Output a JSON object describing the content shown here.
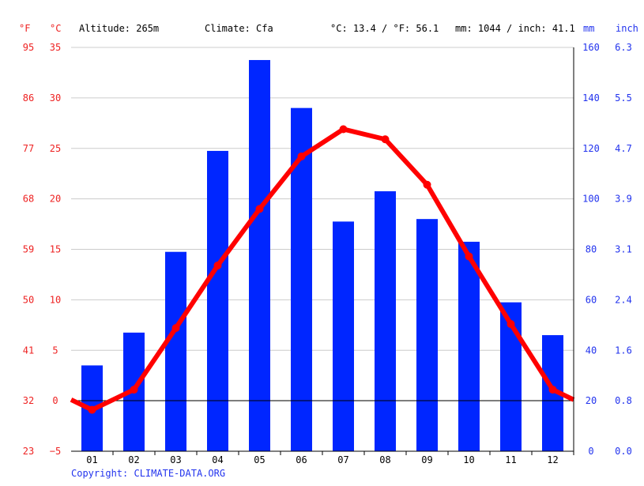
{
  "header": {
    "f_unit": "°F",
    "c_unit": "°C",
    "altitude": "Altitude: 265m",
    "climate": "Climate: Cfa",
    "avg_temp": "°C: 13.4 / °F: 56.1",
    "precip_total": "mm: 1044 / inch: 41.1",
    "mm_unit": "mm",
    "inch_unit": "inch"
  },
  "copyright": "Copyright: CLIMATE-DATA.ORG",
  "colors": {
    "temperature": "#ff0000",
    "precipitation": "#0026ff",
    "left_axis": "#ee2222",
    "right_axis": "#2233ee",
    "grid": "#cccccc"
  },
  "chart_data": {
    "type": "bar+line",
    "categories": [
      "01",
      "02",
      "03",
      "04",
      "05",
      "06",
      "07",
      "08",
      "09",
      "10",
      "11",
      "12"
    ],
    "series": [
      {
        "type": "bar",
        "unit": "mm",
        "values": [
          34,
          47,
          79,
          119,
          155,
          136,
          91,
          103,
          92,
          83,
          59,
          46
        ]
      },
      {
        "type": "line",
        "unit": "°C",
        "values": [
          -0.9,
          1.1,
          7.2,
          13.4,
          19.0,
          24.2,
          26.9,
          25.9,
          21.4,
          14.3,
          7.6,
          1.1
        ]
      }
    ],
    "left_axis_c": {
      "ticks": [
        "35",
        "30",
        "25",
        "20",
        "15",
        "10",
        "5",
        "0",
        "−5"
      ],
      "range": [
        -5,
        35
      ]
    },
    "left_axis_f": {
      "ticks": [
        "95",
        "86",
        "77",
        "68",
        "59",
        "50",
        "41",
        "32",
        "23"
      ]
    },
    "right_axis_mm": {
      "ticks": [
        "160",
        "140",
        "120",
        "100",
        "80",
        "60",
        "40",
        "20",
        "0"
      ],
      "range": [
        0,
        160
      ]
    },
    "right_axis_inch": {
      "ticks": [
        "6.3",
        "5.5",
        "4.7",
        "3.9",
        "3.1",
        "2.4",
        "1.6",
        "0.8",
        "0.0"
      ]
    },
    "grid": true
  }
}
